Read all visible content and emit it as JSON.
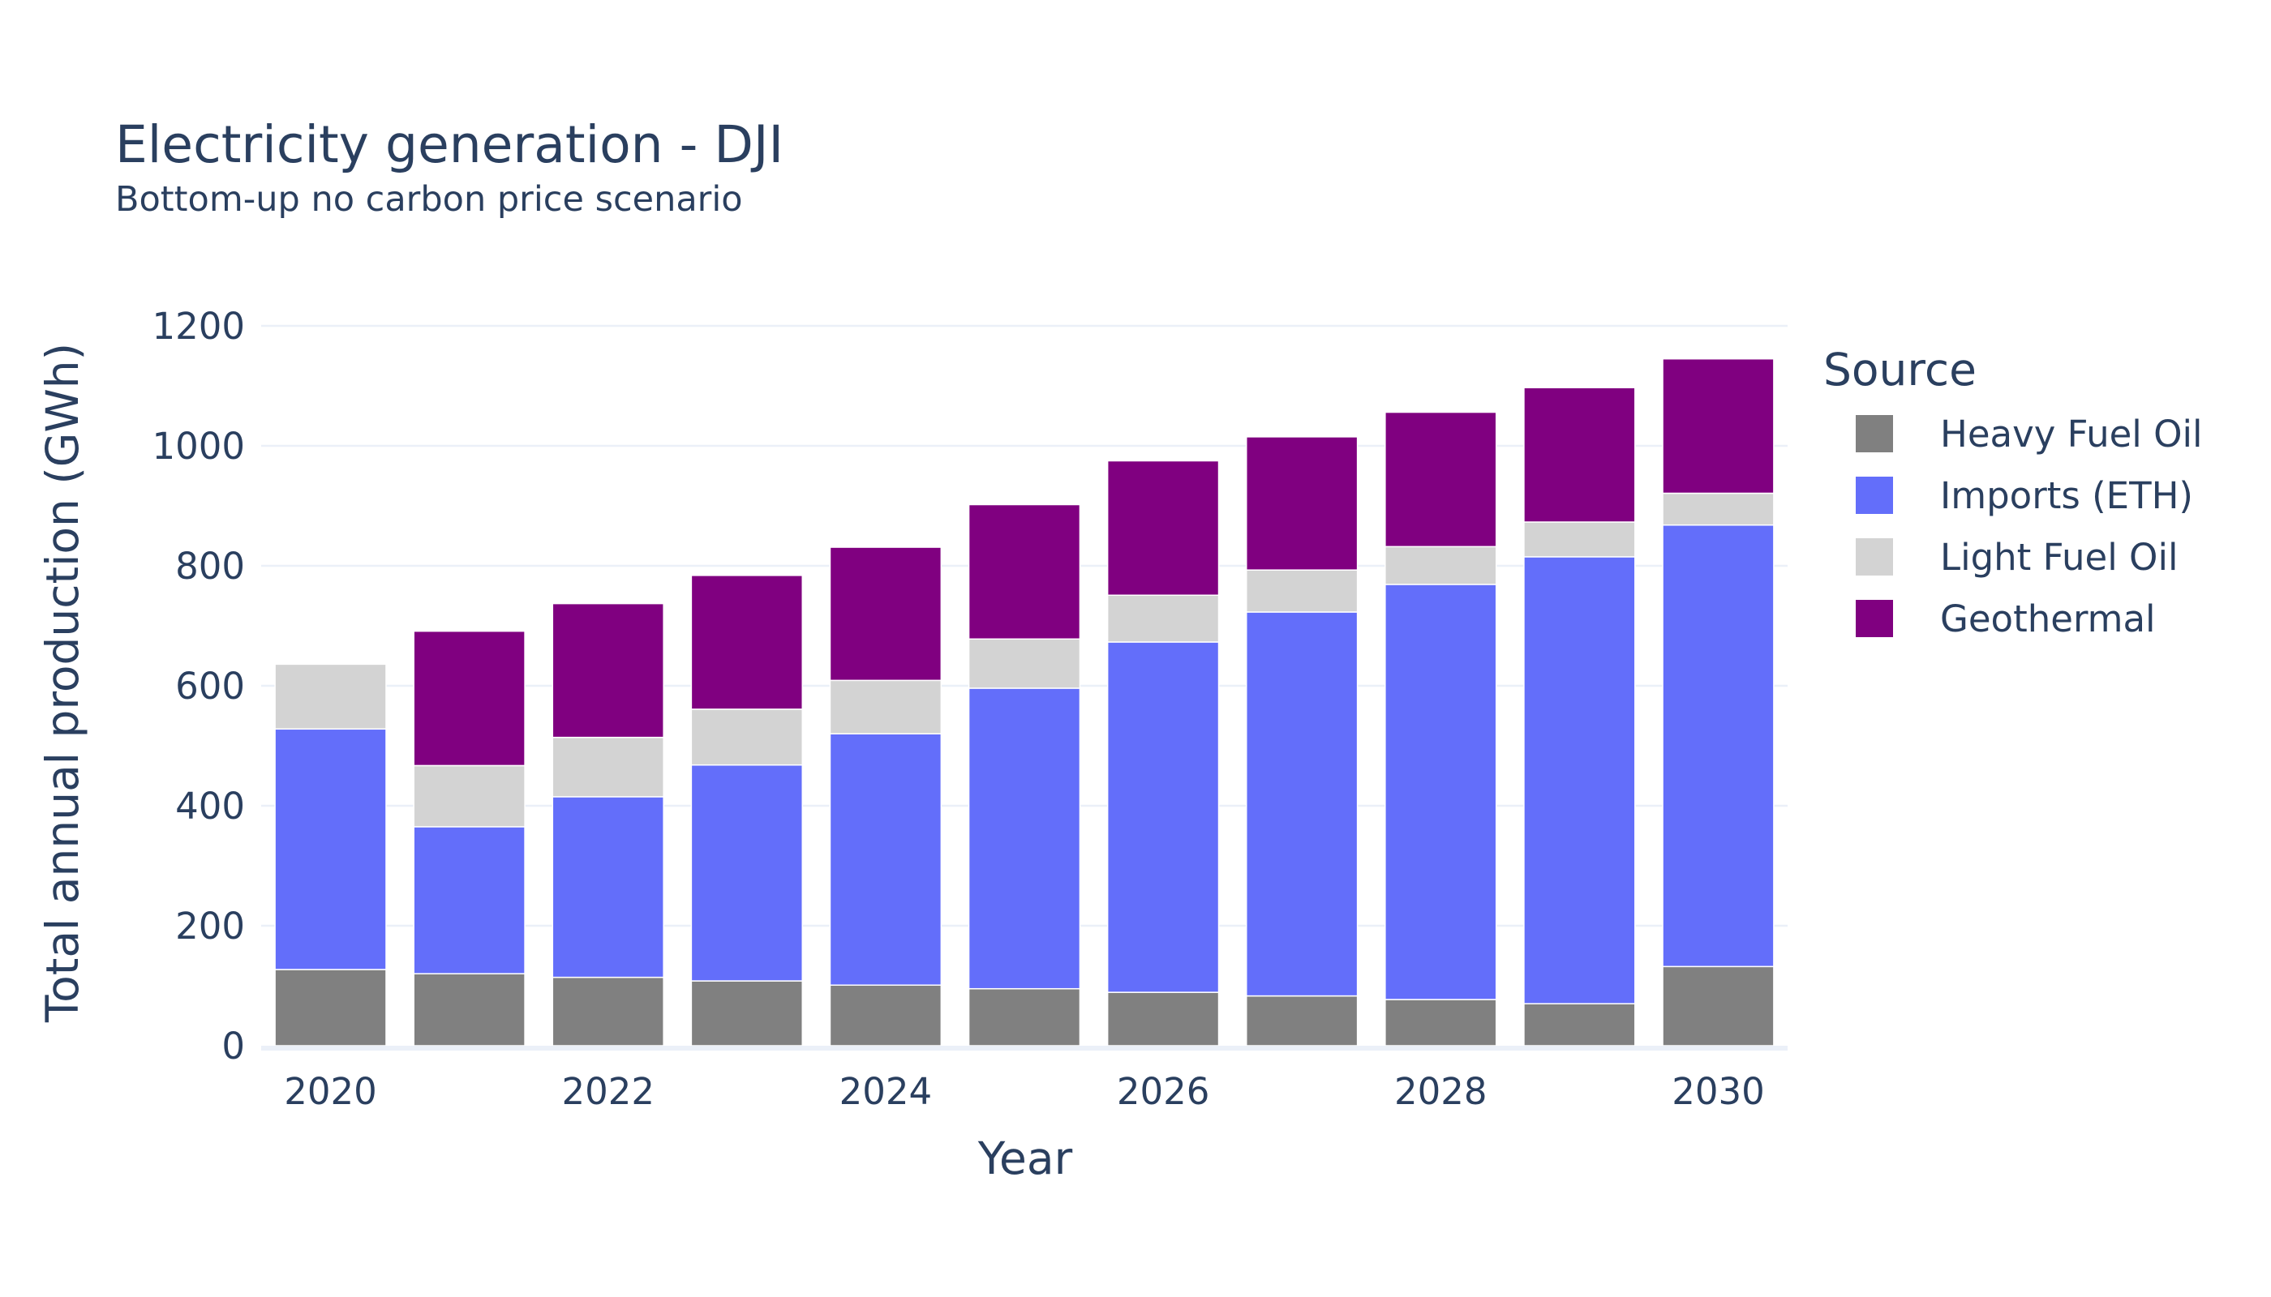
{
  "chart_data": {
    "type": "bar",
    "stacked": true,
    "title": "Electricity generation - DJI",
    "subtitle": "Bottom-up no carbon price scenario",
    "xlabel": "Year",
    "ylabel": "Total annual production (GWh)",
    "ylim": [
      0,
      1200
    ],
    "yticks": [
      0,
      200,
      400,
      600,
      800,
      1000,
      1200
    ],
    "xticks": [
      2020,
      2022,
      2024,
      2026,
      2028,
      2030
    ],
    "grid": true,
    "legend_title": "Source",
    "legend_position": "right",
    "categories": [
      2020,
      2021,
      2022,
      2023,
      2024,
      2025,
      2026,
      2027,
      2028,
      2029,
      2030
    ],
    "series": [
      {
        "name": "Heavy Fuel Oil",
        "color": "#808080",
        "values": [
          127,
          120,
          114,
          108,
          101,
          95,
          89,
          83,
          77,
          70,
          132
        ]
      },
      {
        "name": "Imports (ETH)",
        "color": "#636efa",
        "values": [
          401,
          245,
          301,
          360,
          419,
          501,
          584,
          640,
          692,
          745,
          736
        ]
      },
      {
        "name": "Light Fuel Oil",
        "color": "#d3d3d3",
        "values": [
          108,
          102,
          99,
          93,
          89,
          82,
          78,
          70,
          63,
          58,
          53
        ]
      },
      {
        "name": "Geothermal",
        "color": "#800080",
        "values": [
          0,
          224,
          223,
          223,
          222,
          224,
          224,
          222,
          224,
          224,
          224
        ]
      }
    ]
  }
}
